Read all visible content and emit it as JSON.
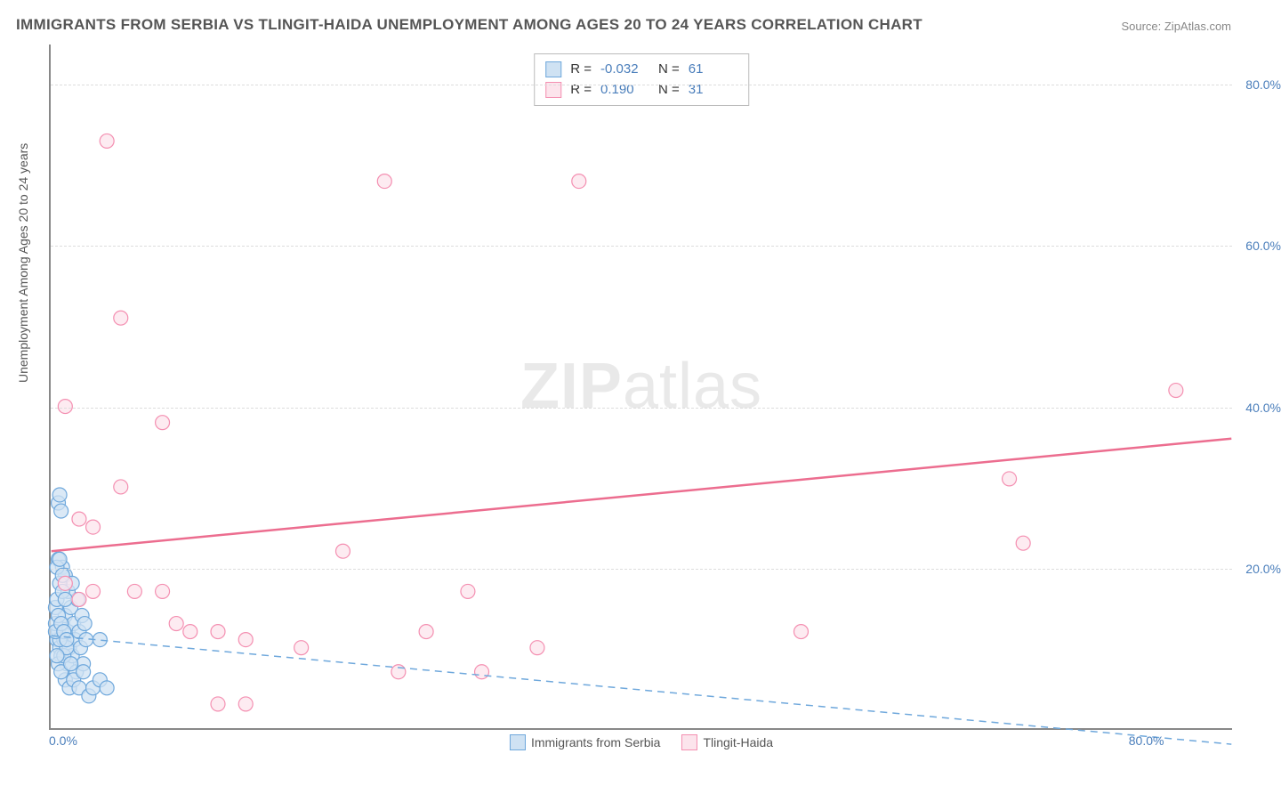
{
  "title": "IMMIGRANTS FROM SERBIA VS TLINGIT-HAIDA UNEMPLOYMENT AMONG AGES 20 TO 24 YEARS CORRELATION CHART",
  "source": "Source: ZipAtlas.com",
  "watermark_bold": "ZIP",
  "watermark_light": "atlas",
  "y_axis_title": "Unemployment Among Ages 20 to 24 years",
  "chart": {
    "type": "scatter",
    "xlim": [
      0,
      85
    ],
    "ylim": [
      0,
      85
    ],
    "x_ticks": [
      {
        "v": 0,
        "label": "0.0%"
      },
      {
        "v": 80,
        "label": "80.0%"
      }
    ],
    "y_ticks": [
      {
        "v": 20,
        "label": "20.0%"
      },
      {
        "v": 40,
        "label": "40.0%"
      },
      {
        "v": 60,
        "label": "60.0%"
      },
      {
        "v": 80,
        "label": "80.0%"
      }
    ],
    "grid_color": "#dddddd",
    "background_color": "#ffffff",
    "axis_color": "#888888",
    "tick_label_color": "#4a7ebb"
  },
  "series": [
    {
      "name": "Immigrants from Serbia",
      "marker_fill": "#cfe2f3",
      "marker_stroke": "#6fa8dc",
      "marker_radius": 8,
      "marker_opacity": 0.75,
      "trend": {
        "style": "dashed",
        "color": "#6fa8dc",
        "width": 1.5,
        "y_at_x0": 11.5,
        "y_at_xmax": -2
      },
      "R": "-0.032",
      "N": "61",
      "points": [
        [
          0.4,
          11
        ],
        [
          0.5,
          12
        ],
        [
          0.6,
          10
        ],
        [
          0.7,
          9
        ],
        [
          0.8,
          13
        ],
        [
          0.9,
          11
        ],
        [
          1.0,
          14
        ],
        [
          1.1,
          8
        ],
        [
          1.2,
          12
        ],
        [
          1.3,
          10
        ],
        [
          1.4,
          15
        ],
        [
          1.5,
          9
        ],
        [
          1.6,
          13
        ],
        [
          1.7,
          11
        ],
        [
          1.8,
          7
        ],
        [
          1.9,
          16
        ],
        [
          2.0,
          12
        ],
        [
          2.1,
          10
        ],
        [
          2.2,
          14
        ],
        [
          2.3,
          8
        ],
        [
          2.4,
          13
        ],
        [
          2.5,
          11
        ],
        [
          0.5,
          21
        ],
        [
          0.8,
          20
        ],
        [
          1.0,
          19
        ],
        [
          0.5,
          28
        ],
        [
          0.6,
          29
        ],
        [
          0.7,
          27
        ],
        [
          1.2,
          17
        ],
        [
          1.5,
          18
        ],
        [
          1.0,
          6
        ],
        [
          1.3,
          5
        ],
        [
          1.6,
          6
        ],
        [
          2.0,
          5
        ],
        [
          2.3,
          7
        ],
        [
          2.7,
          4
        ],
        [
          3.0,
          5
        ],
        [
          3.5,
          6
        ],
        [
          4.0,
          5
        ],
        [
          0.3,
          15
        ],
        [
          0.4,
          16
        ],
        [
          0.6,
          18
        ],
        [
          0.8,
          17
        ],
        [
          1.0,
          16
        ],
        [
          0.5,
          8
        ],
        [
          0.7,
          7
        ],
        [
          0.9,
          9
        ],
        [
          1.1,
          10
        ],
        [
          1.4,
          8
        ],
        [
          0.3,
          13
        ],
        [
          0.5,
          14
        ],
        [
          0.4,
          9
        ],
        [
          0.6,
          11
        ],
        [
          0.3,
          12
        ],
        [
          0.7,
          13
        ],
        [
          0.9,
          12
        ],
        [
          1.1,
          11
        ],
        [
          0.4,
          20
        ],
        [
          0.6,
          21
        ],
        [
          0.8,
          19
        ],
        [
          3.5,
          11
        ]
      ]
    },
    {
      "name": "Tlingit-Haida",
      "marker_fill": "#fce4ec",
      "marker_stroke": "#f48fb1",
      "marker_radius": 8,
      "marker_opacity": 0.75,
      "trend": {
        "style": "solid",
        "color": "#ec6d8f",
        "width": 2.5,
        "y_at_x0": 22,
        "y_at_xmax": 36
      },
      "R": "0.190",
      "N": "31",
      "points": [
        [
          4,
          73
        ],
        [
          24,
          68
        ],
        [
          38,
          68
        ],
        [
          5,
          51
        ],
        [
          1,
          40
        ],
        [
          8,
          38
        ],
        [
          81,
          42
        ],
        [
          69,
          31
        ],
        [
          2,
          26
        ],
        [
          3,
          25
        ],
        [
          21,
          22
        ],
        [
          70,
          23
        ],
        [
          5,
          30
        ],
        [
          3,
          17
        ],
        [
          6,
          17
        ],
        [
          8,
          17
        ],
        [
          30,
          17
        ],
        [
          12,
          12
        ],
        [
          14,
          11
        ],
        [
          10,
          12
        ],
        [
          18,
          10
        ],
        [
          25,
          7
        ],
        [
          12,
          3
        ],
        [
          31,
          7
        ],
        [
          35,
          10
        ],
        [
          54,
          12
        ],
        [
          27,
          12
        ],
        [
          1,
          18
        ],
        [
          2,
          16
        ],
        [
          9,
          13
        ],
        [
          14,
          3
        ]
      ]
    }
  ],
  "stats_legend": {
    "R_label": "R =",
    "N_label": "N ="
  },
  "series_legend_labels": [
    "Immigrants from Serbia",
    "Tlingit-Haida"
  ]
}
